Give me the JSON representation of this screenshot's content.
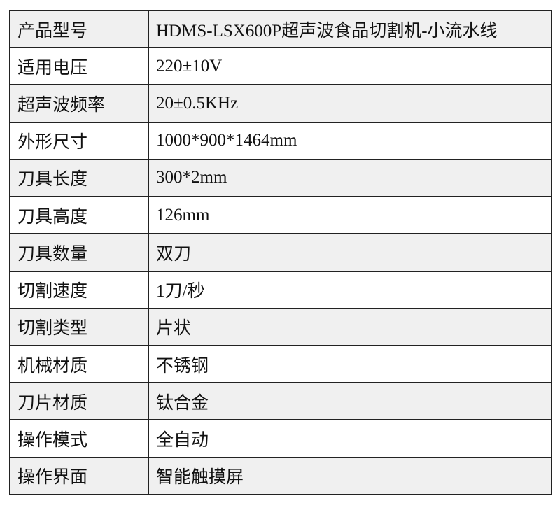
{
  "spec_table": {
    "rows": [
      {
        "label": "产品型号",
        "value": "HDMS-LSX600P超声波食品切割机-小流水线"
      },
      {
        "label": "适用电压",
        "value": "220±10V"
      },
      {
        "label": "超声波频率",
        "value": "20±0.5KHz"
      },
      {
        "label": "外形尺寸",
        "value": "1000*900*1464mm"
      },
      {
        "label": "刀具长度",
        "value": "300*2mm"
      },
      {
        "label": "刀具高度",
        "value": "126mm"
      },
      {
        "label": "刀具数量",
        "value": "双刀"
      },
      {
        "label": "切割速度",
        "value": "1刀/秒"
      },
      {
        "label": "切割类型",
        "value": "片状"
      },
      {
        "label": "机械材质",
        "value": "不锈钢"
      },
      {
        "label": "刀片材质",
        "value": "钛合金"
      },
      {
        "label": "操作模式",
        "value": "全自动"
      },
      {
        "label": "操作界面",
        "value": "智能触摸屏"
      }
    ],
    "colors": {
      "stripe": "#f0f0f0",
      "border": "#222222"
    }
  }
}
